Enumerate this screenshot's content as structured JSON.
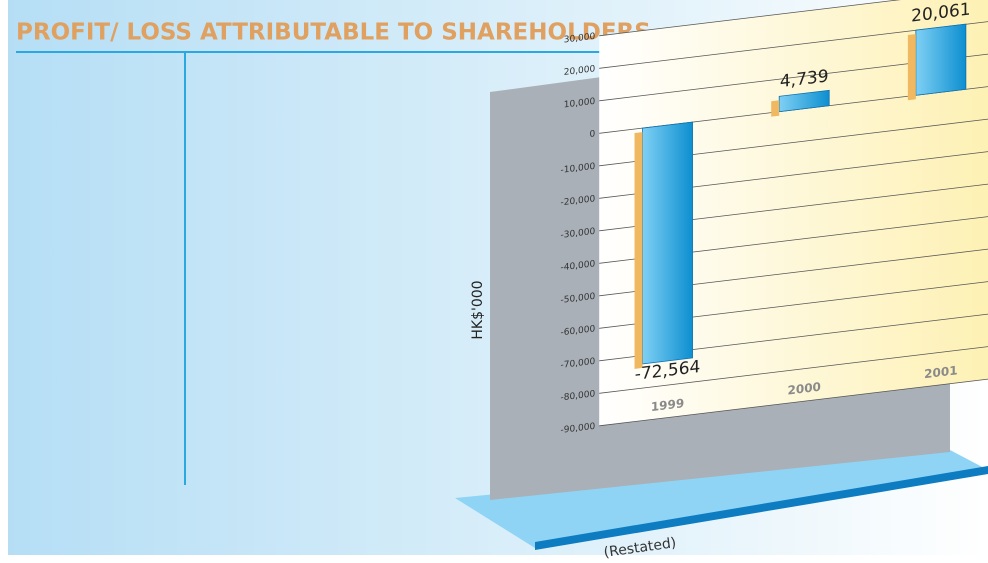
{
  "chart_data": {
    "type": "bar",
    "title": "PROFIT/ LOSS ATTRIBUTABLE TO SHAREHOLDERS",
    "y_label": "HK$'000",
    "annotation": "(Restated)",
    "categories": [
      "1999",
      "2000",
      "2001"
    ],
    "values": [
      -72564,
      4739,
      20061
    ],
    "value_labels": [
      "-72,564",
      "4,739",
      "20,061"
    ],
    "color": "#1ca3e0",
    "ylim": [
      -90000,
      30000
    ],
    "yticks": [
      {
        "value": -90000,
        "label": "-90,000"
      },
      {
        "value": -80000,
        "label": "-80,000"
      },
      {
        "value": -70000,
        "label": "-70,000"
      },
      {
        "value": -60000,
        "label": "-60,000"
      },
      {
        "value": -50000,
        "label": "-50,000"
      },
      {
        "value": -40000,
        "label": "-40,000"
      },
      {
        "value": -30000,
        "label": "-30,000"
      },
      {
        "value": -20000,
        "label": "-20,000"
      },
      {
        "value": -10000,
        "label": "-10,000"
      },
      0,
      {
        "value": 10000,
        "label": "10,000"
      },
      {
        "value": 20000,
        "label": "20,000"
      },
      {
        "value": 30000,
        "label": "30,000"
      }
    ],
    "grid": true
  }
}
